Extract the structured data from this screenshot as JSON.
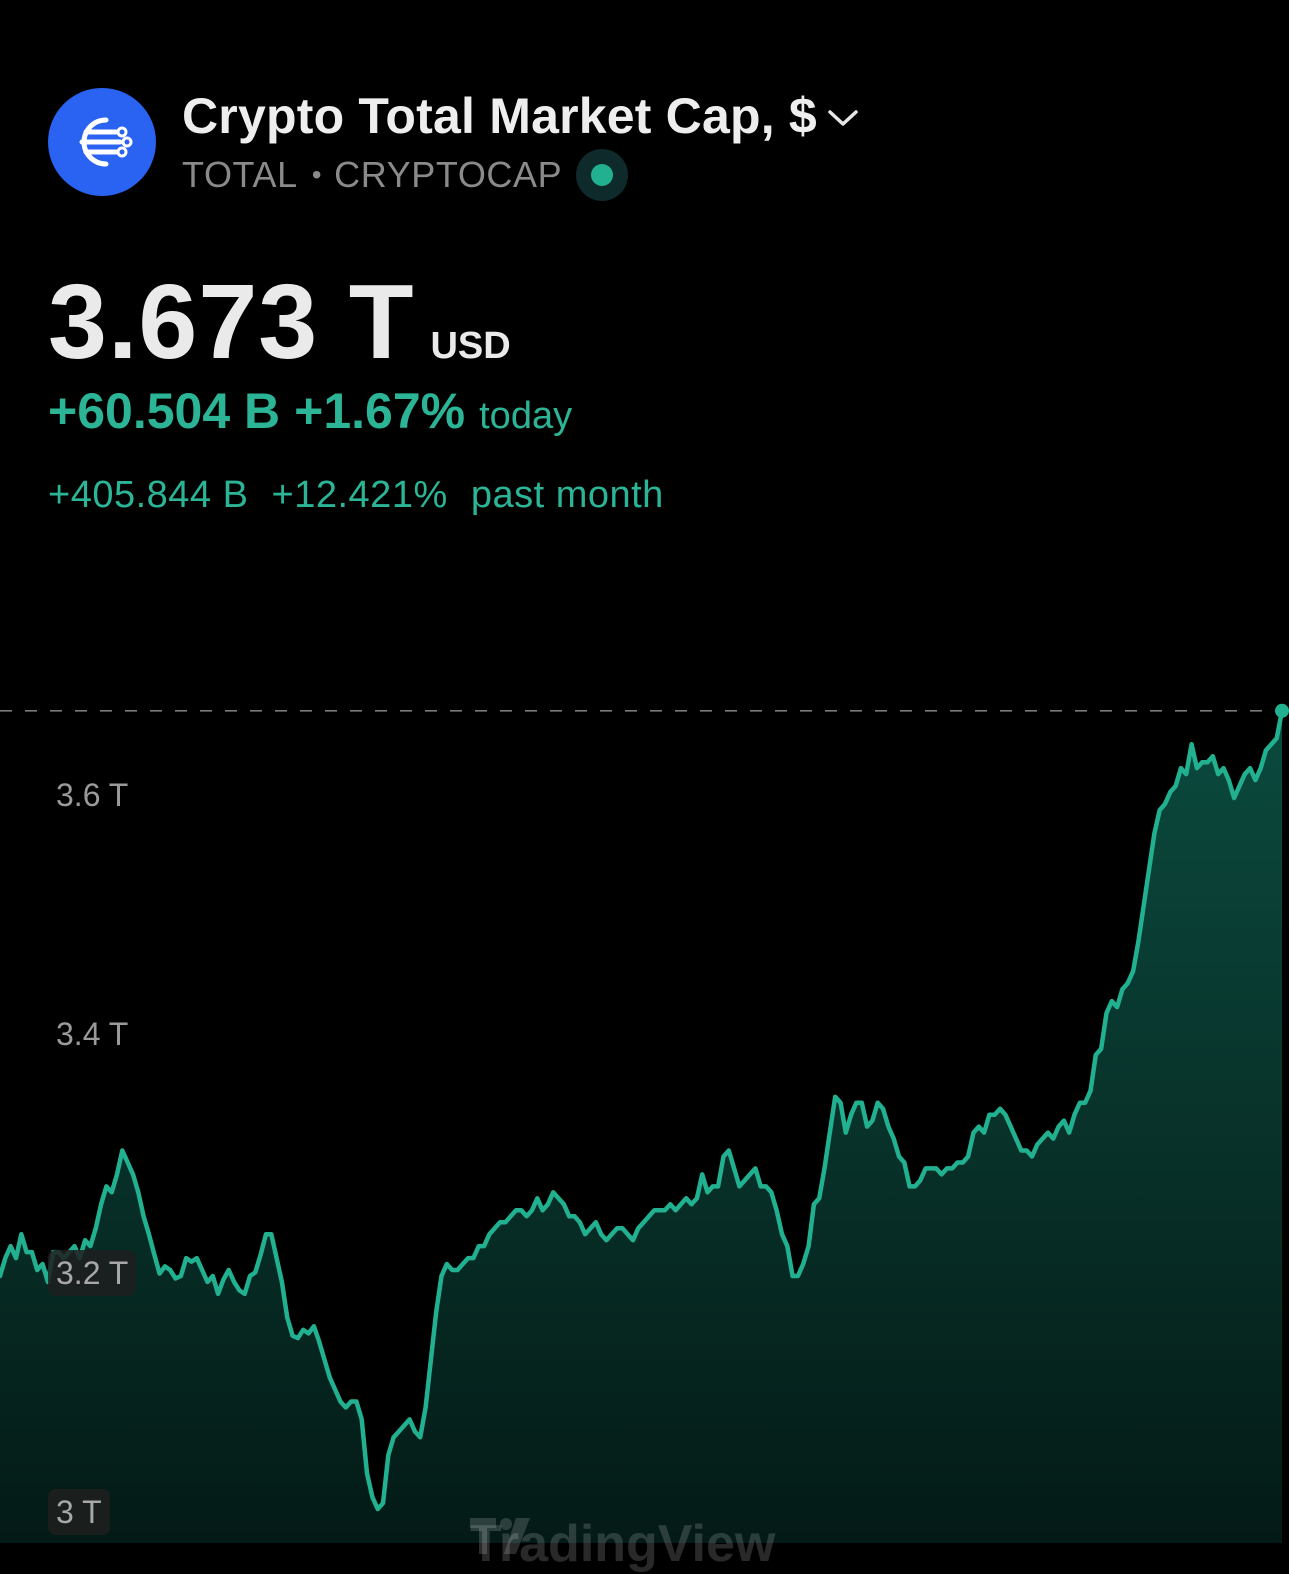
{
  "header": {
    "title": "Crypto Total Market Cap, $",
    "symbol": "TOTAL",
    "separator": "•",
    "exchange": "CRYPTOCAP",
    "logo_icon": "market-cap-icon",
    "dropdown_icon": "chevron-down-icon",
    "status": "market-open"
  },
  "quote": {
    "price": "3.673 T",
    "currency": "USD",
    "today_change": "+60.504 B",
    "today_percent": "+1.67%",
    "today_label": "today",
    "month_change": "+405.844 B",
    "month_percent": "+12.421%",
    "month_label": "past month"
  },
  "colors": {
    "background": "#000000",
    "line": "#22b190",
    "fill_top": "#0b4a3e",
    "fill_bottom": "#041a16",
    "positive_text": "#2bb596",
    "logo_bg": "#2a62f2"
  },
  "watermark": "TradingView",
  "chart_data": {
    "type": "area",
    "title": "",
    "xlabel": "",
    "ylabel": "",
    "ylim": [
      2.991,
      3.682
    ],
    "y_ticks": [
      "3.6 T",
      "3.4 T",
      "3.2 T",
      "3 T"
    ],
    "y_tick_values": [
      3.6,
      3.4,
      3.2,
      3.0
    ],
    "grid": false,
    "last_value": 3.673,
    "last_value_line": "dashed",
    "series": [
      {
        "values": [
          3.2,
          3.215,
          3.225,
          3.215,
          3.235,
          3.22,
          3.22,
          3.205,
          3.21,
          3.195,
          3.22,
          3.22,
          3.215,
          3.22,
          3.225,
          3.215,
          3.23,
          3.225,
          3.24,
          3.26,
          3.275,
          3.27,
          3.285,
          3.305,
          3.295,
          3.285,
          3.27,
          3.25,
          3.235,
          3.218,
          3.202,
          3.208,
          3.205,
          3.198,
          3.2,
          3.215,
          3.212,
          3.215,
          3.205,
          3.195,
          3.2,
          3.185,
          3.197,
          3.205,
          3.195,
          3.188,
          3.185,
          3.2,
          3.203,
          3.218,
          3.235,
          3.235,
          3.215,
          3.195,
          3.165,
          3.15,
          3.148,
          3.155,
          3.152,
          3.158,
          3.145,
          3.13,
          3.115,
          3.105,
          3.095,
          3.09,
          3.095,
          3.095,
          3.08,
          3.035,
          3.015,
          3.005,
          3.01,
          3.05,
          3.065,
          3.07,
          3.075,
          3.08,
          3.07,
          3.065,
          3.09,
          3.13,
          3.17,
          3.2,
          3.21,
          3.205,
          3.205,
          3.21,
          3.215,
          3.215,
          3.225,
          3.225,
          3.235,
          3.24,
          3.245,
          3.245,
          3.25,
          3.255,
          3.255,
          3.25,
          3.255,
          3.265,
          3.255,
          3.26,
          3.27,
          3.265,
          3.26,
          3.25,
          3.25,
          3.245,
          3.235,
          3.24,
          3.245,
          3.235,
          3.23,
          3.235,
          3.24,
          3.24,
          3.235,
          3.23,
          3.24,
          3.245,
          3.25,
          3.255,
          3.255,
          3.255,
          3.26,
          3.255,
          3.26,
          3.265,
          3.26,
          3.265,
          3.285,
          3.27,
          3.275,
          3.275,
          3.3,
          3.305,
          3.29,
          3.275,
          3.28,
          3.285,
          3.29,
          3.275,
          3.275,
          3.27,
          3.255,
          3.235,
          3.225,
          3.2,
          3.2,
          3.21,
          3.225,
          3.26,
          3.265,
          3.29,
          3.32,
          3.35,
          3.345,
          3.32,
          3.335,
          3.345,
          3.345,
          3.325,
          3.33,
          3.345,
          3.34,
          3.325,
          3.315,
          3.3,
          3.295,
          3.275,
          3.275,
          3.28,
          3.29,
          3.29,
          3.29,
          3.285,
          3.29,
          3.29,
          3.295,
          3.295,
          3.3,
          3.32,
          3.325,
          3.32,
          3.335,
          3.335,
          3.34,
          3.335,
          3.325,
          3.315,
          3.305,
          3.305,
          3.3,
          3.31,
          3.315,
          3.32,
          3.315,
          3.325,
          3.33,
          3.32,
          3.335,
          3.345,
          3.345,
          3.355,
          3.385,
          3.39,
          3.42,
          3.43,
          3.425,
          3.44,
          3.445,
          3.455,
          3.48,
          3.51,
          3.54,
          3.57,
          3.59,
          3.595,
          3.605,
          3.61,
          3.625,
          3.62,
          3.645,
          3.625,
          3.63,
          3.63,
          3.635,
          3.62,
          3.625,
          3.615,
          3.6,
          3.61,
          3.62,
          3.625,
          3.615,
          3.625,
          3.64,
          3.645,
          3.65,
          3.673
        ]
      }
    ]
  }
}
